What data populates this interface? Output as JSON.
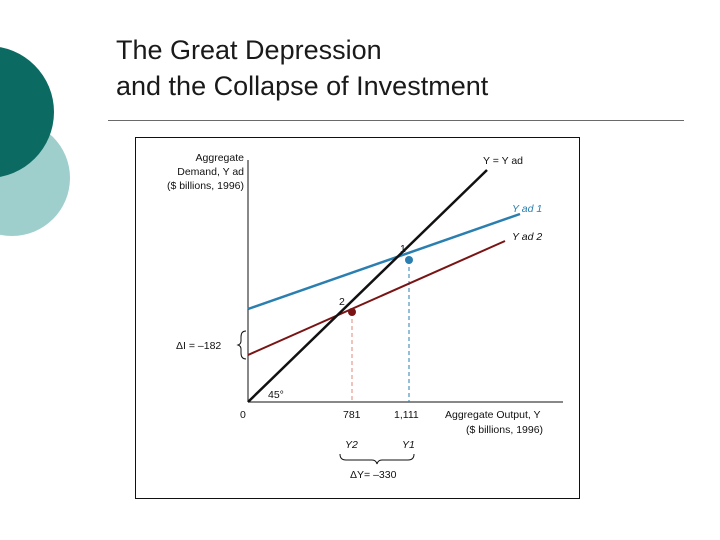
{
  "slide": {
    "title_line1": "The Great Depression",
    "title_line2": "and the Collapse of Investment"
  },
  "colors": {
    "deco_dark": "#0b6b63",
    "deco_light": "#9fcfcc",
    "line_45": "#111111",
    "line_y1": "#2a7fb0",
    "line_y2": "#7a1414",
    "dash_y1": "#2a7fb0",
    "dash_y2": "#e08a7a"
  },
  "diagram": {
    "y_axis_label": [
      "Aggregate",
      "Demand, Y ad",
      "($ billions, 1996)"
    ],
    "x_axis_label": [
      "Aggregate Output, Y",
      "($ billions, 1996)"
    ],
    "line_45_label": "Y = Y ad",
    "line_y1_label": "Y ad 1",
    "line_y2_label": "Y ad 2",
    "angle_label": "45°",
    "origin_label": "0",
    "point1_label": "1",
    "point2_label": "2",
    "x_tick_y2": "781",
    "x_tick_y1": "1,111",
    "y2_label": "Y2",
    "y1_label": "Y1",
    "delta_i_label": "ΔI = –182",
    "delta_y_label": "ΔY= –330"
  }
}
